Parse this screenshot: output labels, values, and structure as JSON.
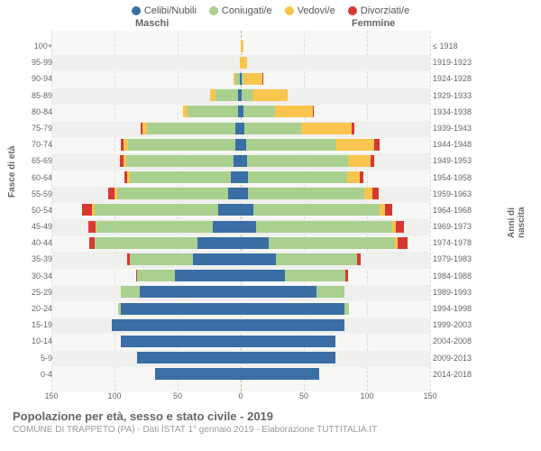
{
  "legend": [
    {
      "label": "Celibi/Nubili",
      "color": "#3a6ea5"
    },
    {
      "label": "Coniugati/e",
      "color": "#a9d08e"
    },
    {
      "label": "Vedovi/e",
      "color": "#f9c54e"
    },
    {
      "label": "Divorziati/e",
      "color": "#d93832"
    }
  ],
  "gender": {
    "m": "Maschi",
    "f": "Femmine"
  },
  "axis": {
    "left": "Fasce di età",
    "right": "Anni di nascita"
  },
  "xlim": 150,
  "xticks": [
    150,
    100,
    50,
    0,
    50,
    100,
    150
  ],
  "plot_bg": "#f7f7f5",
  "row_alt_bg": "#efefed",
  "grid_color": "#dddddd",
  "center_color": "#c9b48a",
  "rows": [
    {
      "age": "100+",
      "birth": "≤ 1918",
      "m": [
        0,
        0,
        0,
        0
      ],
      "f": [
        0,
        0,
        2,
        0
      ]
    },
    {
      "age": "95-99",
      "birth": "1919-1923",
      "m": [
        0,
        0,
        1,
        0
      ],
      "f": [
        0,
        0,
        5,
        0
      ]
    },
    {
      "age": "90-94",
      "birth": "1924-1928",
      "m": [
        1,
        3,
        2,
        0
      ],
      "f": [
        1,
        1,
        15,
        1
      ]
    },
    {
      "age": "85-89",
      "birth": "1929-1933",
      "m": [
        2,
        18,
        4,
        0
      ],
      "f": [
        1,
        8,
        28,
        0
      ]
    },
    {
      "age": "80-84",
      "birth": "1934-1938",
      "m": [
        2,
        40,
        4,
        0
      ],
      "f": [
        2,
        25,
        30,
        1
      ]
    },
    {
      "age": "75-79",
      "birth": "1939-1943",
      "m": [
        4,
        70,
        4,
        1
      ],
      "f": [
        3,
        45,
        40,
        2
      ]
    },
    {
      "age": "70-74",
      "birth": "1944-1948",
      "m": [
        4,
        85,
        4,
        2
      ],
      "f": [
        4,
        72,
        30,
        4
      ]
    },
    {
      "age": "65-69",
      "birth": "1949-1953",
      "m": [
        6,
        85,
        2,
        3
      ],
      "f": [
        5,
        80,
        18,
        3
      ]
    },
    {
      "age": "60-64",
      "birth": "1954-1958",
      "m": [
        8,
        80,
        2,
        2
      ],
      "f": [
        6,
        78,
        10,
        3
      ]
    },
    {
      "age": "55-59",
      "birth": "1959-1963",
      "m": [
        10,
        88,
        2,
        5
      ],
      "f": [
        6,
        92,
        6,
        5
      ]
    },
    {
      "age": "50-54",
      "birth": "1964-1968",
      "m": [
        18,
        98,
        2,
        8
      ],
      "f": [
        10,
        100,
        4,
        6
      ]
    },
    {
      "age": "45-49",
      "birth": "1969-1973",
      "m": [
        22,
        92,
        1,
        6
      ],
      "f": [
        12,
        108,
        3,
        6
      ]
    },
    {
      "age": "40-44",
      "birth": "1974-1978",
      "m": [
        34,
        82,
        0,
        4
      ],
      "f": [
        22,
        100,
        2,
        8
      ]
    },
    {
      "age": "35-39",
      "birth": "1979-1983",
      "m": [
        38,
        50,
        0,
        2
      ],
      "f": [
        28,
        64,
        0,
        3
      ]
    },
    {
      "age": "30-34",
      "birth": "1984-1988",
      "m": [
        52,
        30,
        0,
        1
      ],
      "f": [
        35,
        48,
        0,
        2
      ]
    },
    {
      "age": "25-29",
      "birth": "1989-1993",
      "m": [
        80,
        15,
        0,
        0
      ],
      "f": [
        60,
        22,
        0,
        0
      ]
    },
    {
      "age": "20-24",
      "birth": "1994-1998",
      "m": [
        95,
        2,
        0,
        0
      ],
      "f": [
        82,
        4,
        0,
        0
      ]
    },
    {
      "age": "15-19",
      "birth": "1999-2003",
      "m": [
        102,
        0,
        0,
        0
      ],
      "f": [
        82,
        0,
        0,
        0
      ]
    },
    {
      "age": "10-14",
      "birth": "2004-2008",
      "m": [
        95,
        0,
        0,
        0
      ],
      "f": [
        75,
        0,
        0,
        0
      ]
    },
    {
      "age": "5-9",
      "birth": "2009-2013",
      "m": [
        82,
        0,
        0,
        0
      ],
      "f": [
        75,
        0,
        0,
        0
      ]
    },
    {
      "age": "0-4",
      "birth": "2014-2018",
      "m": [
        68,
        0,
        0,
        0
      ],
      "f": [
        62,
        0,
        0,
        0
      ]
    }
  ],
  "footer": {
    "title": "Popolazione per età, sesso e stato civile - 2019",
    "sub": "COMUNE DI TRAPPETO (PA) - Dati ISTAT 1° gennaio 2019 - Elaborazione TUTTITALIA.IT"
  }
}
